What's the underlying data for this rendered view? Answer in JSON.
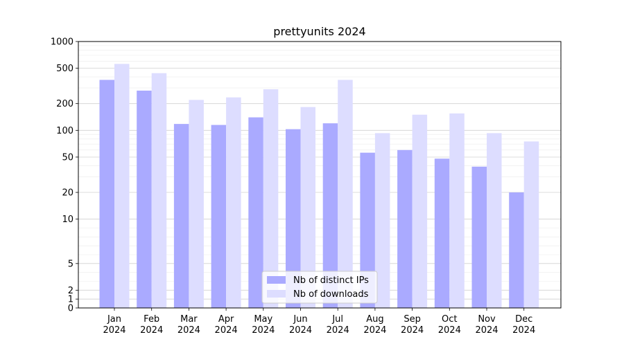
{
  "chart_data": {
    "type": "bar",
    "title": "prettyunits 2024",
    "xlabel": "",
    "ylabel": "",
    "yscale": "symlog",
    "ylim": [
      0,
      1000
    ],
    "yticks": [
      0,
      1,
      2,
      5,
      10,
      20,
      50,
      100,
      200,
      500,
      1000
    ],
    "ytick_labels": [
      "0",
      "1",
      "2",
      "5",
      "10",
      "20",
      "50",
      "100",
      "200",
      "500",
      "1000"
    ],
    "categories": [
      [
        "Jan",
        "2024"
      ],
      [
        "Feb",
        "2024"
      ],
      [
        "Mar",
        "2024"
      ],
      [
        "Apr",
        "2024"
      ],
      [
        "May",
        "2024"
      ],
      [
        "Jun",
        "2024"
      ],
      [
        "Jul",
        "2024"
      ],
      [
        "Aug",
        "2024"
      ],
      [
        "Sep",
        "2024"
      ],
      [
        "Oct",
        "2024"
      ],
      [
        "Nov",
        "2024"
      ],
      [
        "Dec",
        "2024"
      ]
    ],
    "series": [
      {
        "name": "Nb of distinct IPs",
        "color": "#aaaaff",
        "values": [
          370,
          280,
          118,
          115,
          140,
          103,
          120,
          56,
          60,
          48,
          39,
          20
        ]
      },
      {
        "name": "Nb of downloads",
        "color": "#ddddff",
        "values": [
          560,
          440,
          220,
          235,
          290,
          183,
          370,
          93,
          150,
          155,
          93,
          75
        ]
      }
    ],
    "grid": true,
    "legend_position": "bottom-center"
  }
}
